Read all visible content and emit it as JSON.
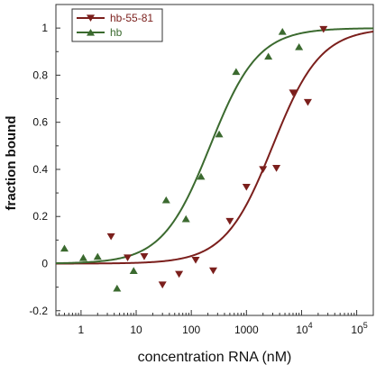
{
  "chart_data": {
    "type": "scatter",
    "title": "",
    "xlabel": "concentration RNA (nM)",
    "ylabel": "fraction bound",
    "xscale": "log",
    "xlim": [
      0.35,
      200000
    ],
    "ylim": [
      -0.22,
      1.1
    ],
    "grid": false,
    "legend_position": "top-left",
    "x_ticks": [
      {
        "value": 1,
        "label": "1",
        "sup": ""
      },
      {
        "value": 10,
        "label": "10",
        "sup": ""
      },
      {
        "value": 100,
        "label": "100",
        "sup": ""
      },
      {
        "value": 1000,
        "label": "1000",
        "sup": ""
      },
      {
        "value": 10000,
        "label": "10",
        "sup": "4"
      },
      {
        "value": 100000,
        "label": "10",
        "sup": "5"
      }
    ],
    "y_ticks": [
      {
        "value": -0.2,
        "label": "-0.2"
      },
      {
        "value": 0,
        "label": "0"
      },
      {
        "value": 0.2,
        "label": "0.2"
      },
      {
        "value": 0.4,
        "label": "0.4"
      },
      {
        "value": 0.6,
        "label": "0.6"
      },
      {
        "value": 0.8,
        "label": "0.8"
      },
      {
        "value": 1,
        "label": "1"
      }
    ],
    "series": [
      {
        "name": "hb-55-81",
        "color": "#7b1f1c",
        "marker": "triangle-down",
        "points": [
          {
            "x": 3.5,
            "y": 0.115
          },
          {
            "x": 7,
            "y": 0.025
          },
          {
            "x": 14,
            "y": 0.03
          },
          {
            "x": 30,
            "y": -0.09
          },
          {
            "x": 60,
            "y": -0.045
          },
          {
            "x": 120,
            "y": 0.015
          },
          {
            "x": 250,
            "y": -0.03
          },
          {
            "x": 500,
            "y": 0.18
          },
          {
            "x": 1000,
            "y": 0.325
          },
          {
            "x": 2000,
            "y": 0.4
          },
          {
            "x": 3500,
            "y": 0.405
          },
          {
            "x": 7000,
            "y": 0.725
          },
          {
            "x": 13000,
            "y": 0.685
          },
          {
            "x": 25000,
            "y": 0.995
          }
        ],
        "fit": {
          "kd": 3000,
          "hill": 1.0
        }
      },
      {
        "name": "hb",
        "color": "#3b6a2f",
        "marker": "triangle-up",
        "points": [
          {
            "x": 0.5,
            "y": 0.065
          },
          {
            "x": 1.1,
            "y": 0.025
          },
          {
            "x": 2.0,
            "y": 0.03
          },
          {
            "x": 4.5,
            "y": -0.105
          },
          {
            "x": 9,
            "y": -0.03
          },
          {
            "x": 35,
            "y": 0.27
          },
          {
            "x": 80,
            "y": 0.19
          },
          {
            "x": 150,
            "y": 0.37
          },
          {
            "x": 320,
            "y": 0.55
          },
          {
            "x": 650,
            "y": 0.815
          },
          {
            "x": 2500,
            "y": 0.88
          },
          {
            "x": 4500,
            "y": 0.985
          },
          {
            "x": 9000,
            "y": 0.92
          }
        ],
        "fit": {
          "kd": 220,
          "hill": 1.0
        }
      }
    ]
  }
}
